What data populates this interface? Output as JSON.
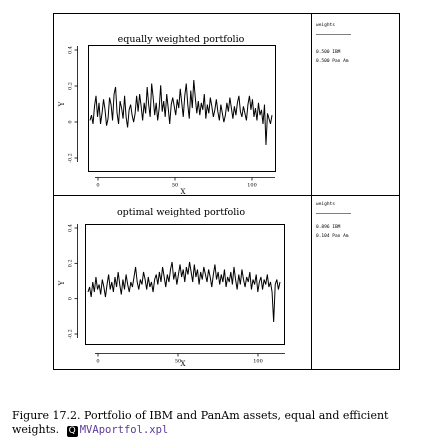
{
  "figure": {
    "panels": [
      {
        "title": "equally weighted portfolio",
        "legend_header": "weights",
        "weights": [
          "0.500 IBM",
          "0.500 Pan Am"
        ]
      },
      {
        "title": "optimal weighted portfolio",
        "legend_header": "weights",
        "weights": [
          "0.896 IBM",
          "0.104 Pan Am"
        ]
      }
    ]
  },
  "caption": {
    "label": "Figure 17.2.",
    "text": "Portfolio of IBM and PanAm assets, equal and efficient weights.",
    "quantlet": "MVAportfol.xpl"
  },
  "chart_data": [
    {
      "type": "line",
      "title": "equally weighted portfolio",
      "xlabel": "X",
      "ylabel": "Y",
      "xlim": [
        0,
        122
      ],
      "ylim": [
        -0.2,
        0.4
      ],
      "x_ticks": [
        "0",
        "50",
        "100"
      ],
      "y_ticks": [
        "-0.2",
        "0",
        "0.2",
        "0.4"
      ],
      "legend": [
        "0.500 IBM",
        "0.500 Pan Am"
      ],
      "series": [
        {
          "values": [
            0.02,
            0.05,
            0.0,
            0.1,
            0.16,
            0.04,
            0.12,
            0.0,
            0.06,
            0.14,
            0.08,
            -0.01,
            0.03,
            0.15,
            0.11,
            0.02,
            0.17,
            0.21,
            0.06,
            0.0,
            0.13,
            0.09,
            0.03,
            0.16,
            0.04,
            -0.02,
            0.08,
            0.11,
            0.05,
            0.01,
            0.06,
            0.16,
            0.07,
            0.17,
            0.1,
            0.02,
            0.12,
            0.06,
            0.21,
            0.11,
            0.04,
            0.23,
            0.15,
            0.05,
            0.12,
            0.02,
            0.09,
            0.22,
            0.07,
            0.13,
            0.04,
            0.17,
            0.09,
            0.0,
            0.11,
            0.15,
            0.1,
            0.05,
            0.14,
            0.09,
            0.2,
            0.12,
            0.04,
            0.16,
            0.23,
            0.11,
            0.03,
            0.19,
            0.09,
            0.25,
            0.15,
            0.06,
            0.13,
            0.05,
            0.12,
            0.08,
            0.17,
            0.03,
            0.11,
            0.06,
            0.15,
            0.1,
            0.04,
            0.08,
            0.14,
            0.07,
            0.02,
            0.11,
            0.06,
            0.01,
            0.05,
            0.12,
            0.07,
            0.15,
            0.09,
            0.03,
            0.1,
            0.05,
            0.12,
            0.16,
            0.07,
            0.04,
            0.1,
            0.06,
            0.02,
            0.11,
            0.16,
            0.08,
            0.14,
            0.04,
            0.09,
            0.02,
            0.12,
            0.05,
            0.08,
            0.0,
            0.11,
            -0.12,
            0.06,
            0.03,
            0.0,
            0.05
          ]
        }
      ]
    },
    {
      "type": "line",
      "title": "optimal weighted portfolio",
      "xlabel": "X",
      "ylabel": "Y",
      "xlim": [
        0,
        122
      ],
      "ylim": [
        -0.2,
        0.4
      ],
      "x_ticks": [
        "0",
        "50",
        "100"
      ],
      "y_ticks": [
        "-0.2",
        "0",
        "0.2",
        "0.4"
      ],
      "legend": [
        "0.896 IBM",
        "0.104 Pan Am"
      ],
      "series": [
        {
          "values": [
            0.02,
            0.04,
            0.0,
            0.06,
            0.02,
            0.08,
            0.03,
            0.05,
            0.01,
            0.07,
            0.04,
            0.0,
            0.05,
            0.09,
            0.03,
            0.06,
            0.02,
            0.08,
            0.04,
            0.1,
            0.05,
            0.01,
            0.07,
            0.03,
            0.09,
            0.05,
            0.02,
            0.06,
            0.04,
            0.08,
            0.12,
            0.06,
            0.03,
            0.07,
            0.05,
            0.1,
            0.07,
            0.03,
            0.08,
            0.04,
            0.06,
            0.02,
            0.07,
            0.09,
            0.05,
            0.1,
            0.06,
            0.12,
            0.08,
            0.04,
            0.09,
            0.06,
            0.11,
            0.14,
            0.07,
            0.1,
            0.05,
            0.09,
            0.13,
            0.08,
            0.11,
            0.06,
            0.12,
            0.09,
            0.14,
            0.1,
            0.06,
            0.13,
            0.08,
            0.11,
            0.05,
            0.1,
            0.07,
            0.12,
            0.09,
            0.06,
            0.11,
            0.08,
            0.04,
            0.09,
            0.13,
            0.07,
            0.1,
            0.05,
            0.09,
            0.06,
            0.11,
            0.04,
            0.08,
            0.06,
            0.1,
            0.05,
            0.12,
            0.07,
            0.03,
            0.09,
            0.05,
            0.11,
            0.07,
            0.04,
            0.08,
            0.06,
            0.1,
            0.03,
            0.07,
            0.05,
            0.09,
            0.02,
            0.06,
            0.08,
            0.03,
            0.07,
            0.05,
            0.09,
            0.04,
            0.06,
            0.02,
            -0.1,
            0.05,
            0.07,
            0.03,
            0.06
          ]
        }
      ]
    }
  ]
}
